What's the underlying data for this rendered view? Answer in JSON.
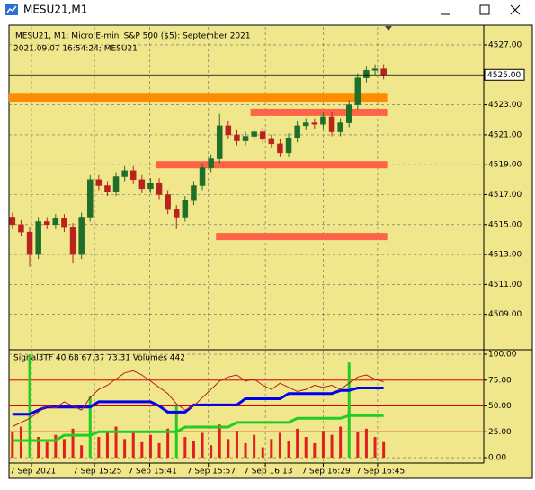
{
  "window": {
    "title": "MESU21,M1"
  },
  "chart_data": [
    {
      "type": "candlestick",
      "title": "MESU21, M1:  Micro E-mini S&P 500 ($5): September 2021",
      "subtitle": "2021.09.07 16:54:24; MESU21",
      "up_color": "#1f6e2a",
      "down_color": "#b8231f",
      "open": [
        4515.5,
        4515.0,
        4514.5,
        4513.0,
        4515.2,
        4515.0,
        4515.4,
        4514.8,
        4513.0,
        4515.5,
        4518.0,
        4517.6,
        4517.2,
        4518.2,
        4518.6,
        4518.0,
        4517.4,
        4517.8,
        4517.0,
        4516.0,
        4515.5,
        4516.6,
        4517.6,
        4518.8,
        4519.4,
        4521.6,
        4521.0,
        4520.6,
        4520.9,
        4521.2,
        4520.7,
        4520.4,
        4519.8,
        4520.8,
        4521.6,
        4521.8,
        4521.7,
        4522.2,
        4521.2,
        4521.8,
        4523.0,
        4524.8,
        4525.3,
        4525.4
      ],
      "high": [
        4515.8,
        4515.3,
        4514.8,
        4515.5,
        4515.5,
        4515.7,
        4515.7,
        4515.1,
        4515.8,
        4518.3,
        4518.3,
        4517.9,
        4518.5,
        4518.9,
        4518.9,
        4518.3,
        4518.1,
        4518.1,
        4517.3,
        4516.3,
        4516.9,
        4517.9,
        4519.1,
        4519.7,
        4522.4,
        4521.9,
        4521.3,
        4521.2,
        4521.5,
        4521.5,
        4521.0,
        4520.7,
        4521.1,
        4521.9,
        4522.1,
        4522.1,
        4522.5,
        4522.5,
        4522.1,
        4523.3,
        4525.1,
        4525.6,
        4525.7,
        4525.7
      ],
      "low": [
        4514.7,
        4514.2,
        4512.2,
        4512.7,
        4514.7,
        4514.7,
        4514.5,
        4512.4,
        4512.7,
        4515.2,
        4517.3,
        4516.9,
        4516.9,
        4517.9,
        4517.7,
        4517.1,
        4517.1,
        4516.7,
        4515.7,
        4514.7,
        4515.2,
        4516.3,
        4517.3,
        4518.5,
        4519.1,
        4520.7,
        4520.3,
        4520.3,
        4520.6,
        4520.4,
        4520.1,
        4519.5,
        4519.5,
        4520.5,
        4521.3,
        4521.4,
        4521.4,
        4520.9,
        4520.9,
        4521.5,
        4522.7,
        4524.5,
        4525.0,
        4524.7
      ],
      "close": [
        4515.0,
        4514.5,
        4513.0,
        4515.2,
        4515.0,
        4515.4,
        4514.8,
        4513.0,
        4515.5,
        4518.0,
        4517.6,
        4517.2,
        4518.2,
        4518.6,
        4518.0,
        4517.4,
        4517.8,
        4517.0,
        4516.0,
        4515.5,
        4516.6,
        4517.6,
        4518.8,
        4519.4,
        4521.6,
        4521.0,
        4520.6,
        4520.9,
        4521.2,
        4520.7,
        4520.4,
        4519.8,
        4520.8,
        4521.6,
        4521.8,
        4521.7,
        4522.2,
        4521.2,
        4521.8,
        4523.0,
        4524.8,
        4525.3,
        4525.4,
        4525.0
      ],
      "xlim": [
        -0.4,
        54.6
      ],
      "ylim": [
        4506.7,
        4528.2
      ],
      "yticks": [
        {
          "value": 4527,
          "label": "4527.00"
        },
        {
          "value": 4523,
          "label": "4523.00"
        },
        {
          "value": 4521,
          "label": "4521.00"
        },
        {
          "value": 4519,
          "label": "4519.00"
        },
        {
          "value": 4517,
          "label": "4517.00"
        },
        {
          "value": 4515,
          "label": "4515.00"
        },
        {
          "value": 4513,
          "label": "4513.00"
        },
        {
          "value": 4511,
          "label": "4511.00"
        },
        {
          "value": 4509,
          "label": "4509.00"
        }
      ],
      "grid": true,
      "current_price": {
        "value": 4525,
        "label": "4525.00"
      },
      "levels": [
        {
          "value": 4523.5,
          "start": 0,
          "color": "#ff8c00"
        },
        {
          "value": 4522.5,
          "start": 28,
          "color": "#ff6347"
        },
        {
          "value": 4519.0,
          "start": 17,
          "color": "#ff6347"
        },
        {
          "value": 4514.2,
          "start": 24,
          "color": "#ff6347"
        }
      ]
    },
    {
      "type": "indicator",
      "title": "Signal3TF 40.68 67.37 73.31 Volumes 442",
      "xlim": [
        -0.4,
        54.6
      ],
      "xticks": [
        {
          "value": 2.2,
          "label": "7 Sep 2021"
        },
        {
          "value": 9.5,
          "label": "7 Sep 15:25"
        },
        {
          "value": 15.9,
          "label": "7 Sep 15:41"
        },
        {
          "value": 22.7,
          "label": "7 Sep 15:57"
        },
        {
          "value": 29.3,
          "label": "7 Sep 16:13"
        },
        {
          "value": 36,
          "label": "7 Sep 16:29"
        },
        {
          "value": 42.3,
          "label": "7 Sep 16:45"
        }
      ],
      "ylim": [
        -5.2,
        103.5
      ],
      "yticks": [
        {
          "value": 100,
          "label": "100.00"
        },
        {
          "value": 75,
          "label": "75.00"
        },
        {
          "value": 50,
          "label": "50.00"
        },
        {
          "value": 25,
          "label": "25.00"
        },
        {
          "value": 0,
          "label": "0.00"
        }
      ],
      "grid": true,
      "levels": [
        75,
        50,
        25
      ],
      "level_color": "#dd0000",
      "series": [
        {
          "color": "#22cc22",
          "values": [
            16.5,
            16.5,
            16.5,
            16.5,
            16.5,
            16.5,
            21.7,
            21.7,
            21.7,
            21.7,
            25,
            25,
            25,
            25,
            25,
            25,
            25,
            25,
            25,
            25,
            29.6,
            29.6,
            29.6,
            29.6,
            29.6,
            29.6,
            34,
            34,
            34,
            34,
            34,
            34,
            34,
            38,
            38,
            38,
            38,
            38,
            38,
            40.68,
            40.68,
            40.68,
            40.68,
            40.68
          ]
        },
        {
          "color": "#0000ee",
          "values": [
            42,
            42,
            42,
            46,
            49,
            49,
            49,
            49,
            49,
            49,
            54,
            54,
            54,
            54,
            54,
            54,
            54,
            50,
            44,
            44,
            44,
            51,
            51,
            51,
            51,
            51,
            51,
            57,
            57,
            57,
            57,
            57,
            62,
            62,
            62,
            62,
            62,
            62,
            65,
            65,
            67.37,
            67.37,
            67.37,
            67.37
          ]
        },
        {
          "color": "#b81c1c",
          "values": [
            30,
            34,
            38,
            44,
            50,
            48,
            54,
            50,
            46,
            58,
            66,
            70,
            76,
            82,
            84,
            80,
            74,
            68,
            62,
            52,
            46,
            50,
            58,
            66,
            74,
            78,
            80,
            74,
            76,
            70,
            66,
            72,
            68,
            64,
            66,
            70,
            68,
            70,
            66,
            72,
            78,
            80,
            76,
            73.31
          ]
        }
      ],
      "volume": {
        "color": "#e02020",
        "values": [
          25,
          30,
          null,
          20,
          15,
          22,
          18,
          28,
          12,
          null,
          20,
          24,
          30,
          18,
          26,
          15,
          22,
          14,
          28,
          null,
          20,
          16,
          24,
          12,
          32,
          18,
          26,
          14,
          22,
          10,
          18,
          24,
          16,
          28,
          20,
          14,
          26,
          22,
          30,
          null,
          25,
          28,
          20,
          15
        ]
      },
      "volume_highlight": {
        "color": "#22cc22",
        "values": [
          null,
          null,
          100,
          null,
          null,
          null,
          null,
          null,
          null,
          60,
          null,
          null,
          null,
          null,
          null,
          null,
          null,
          null,
          null,
          50,
          null,
          null,
          null,
          null,
          null,
          null,
          null,
          null,
          null,
          null,
          null,
          null,
          null,
          null,
          null,
          null,
          null,
          null,
          null,
          92,
          null,
          null,
          null,
          null
        ]
      }
    }
  ]
}
